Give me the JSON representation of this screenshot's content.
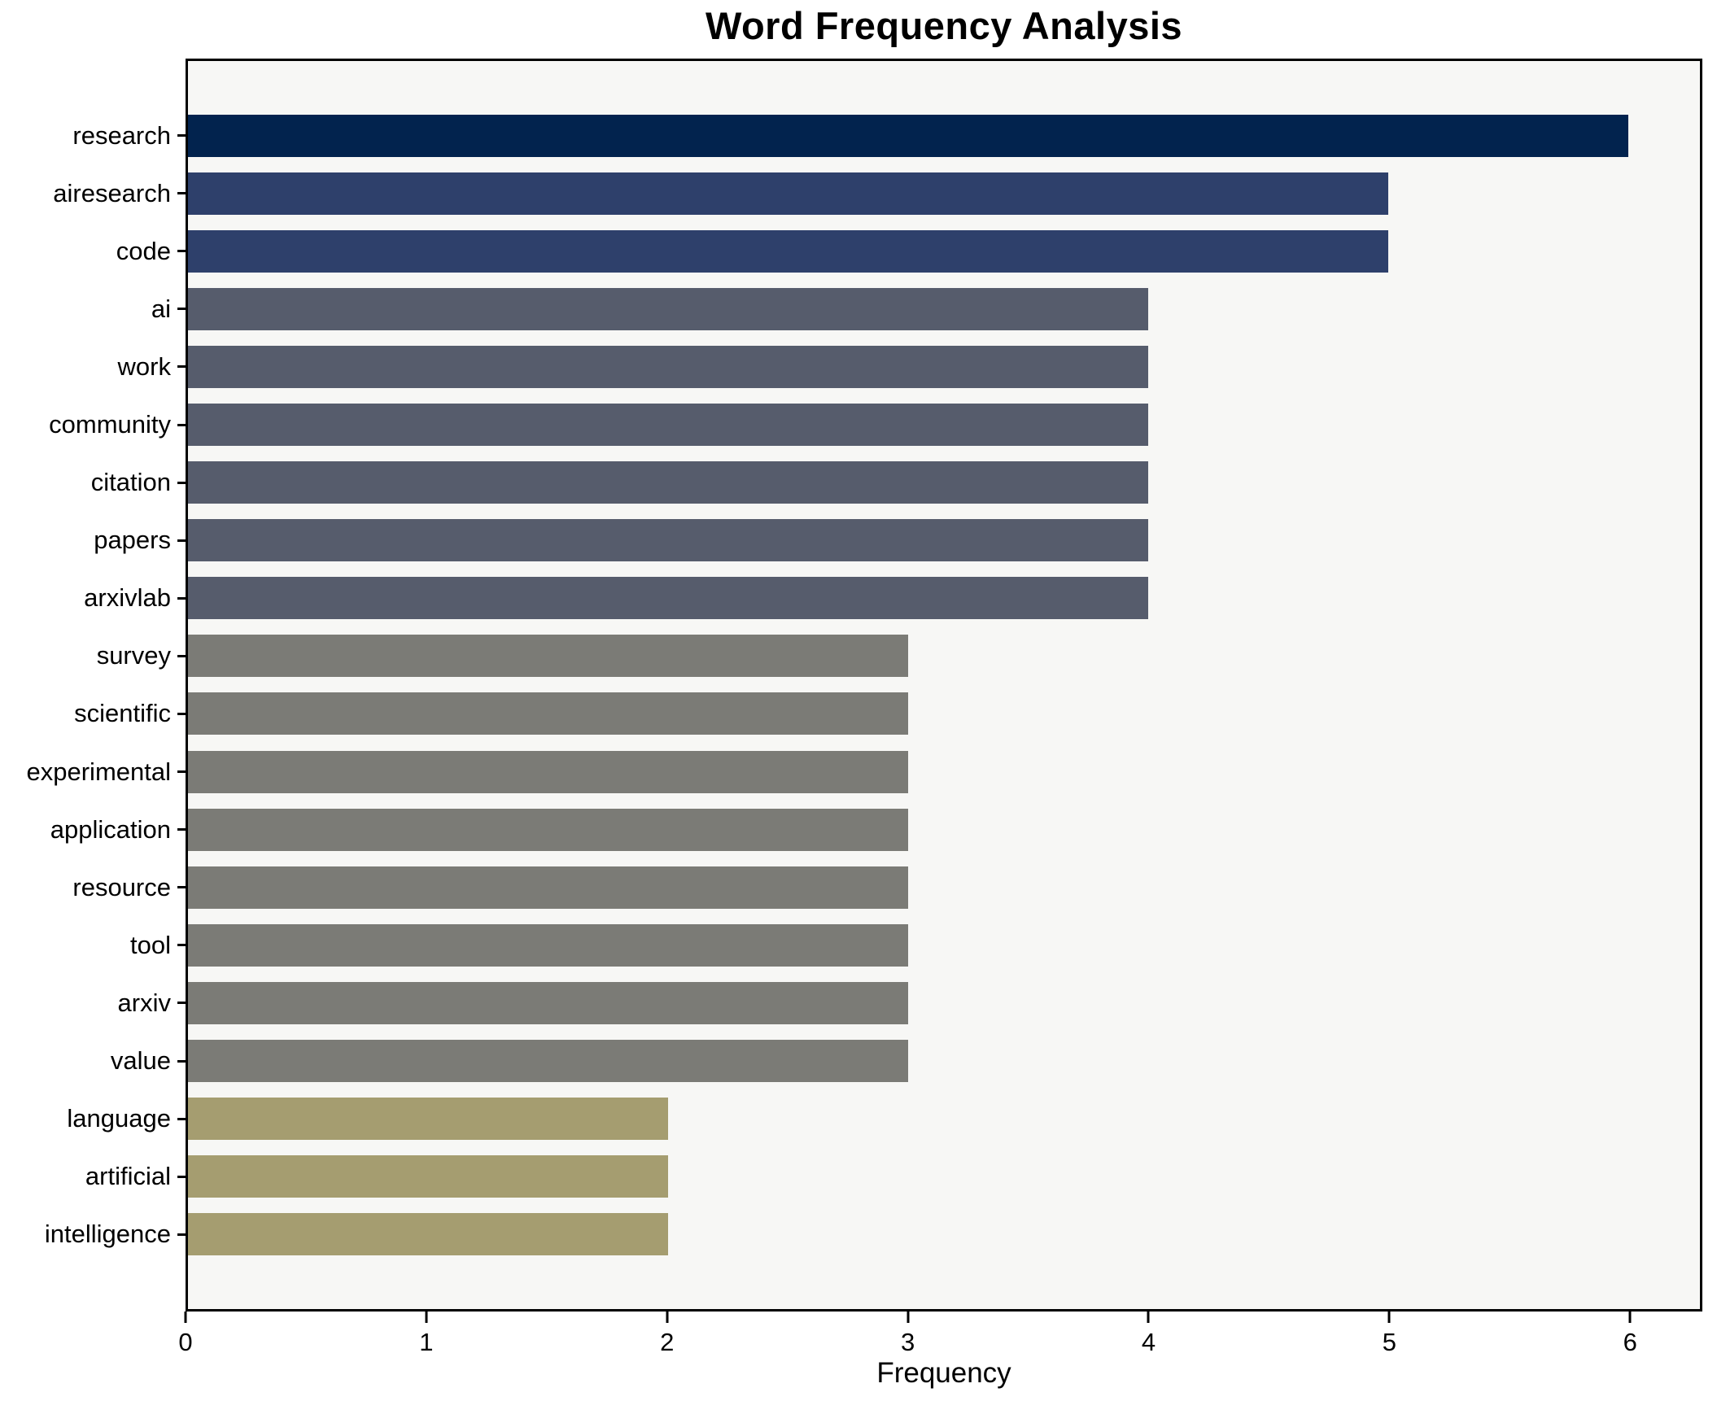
{
  "chart_data": {
    "type": "bar",
    "orientation": "horizontal",
    "title": "Word Frequency Analysis",
    "xlabel": "Frequency",
    "ylabel": "",
    "categories": [
      "research",
      "airesearch",
      "code",
      "ai",
      "work",
      "community",
      "citation",
      "papers",
      "arxivlab",
      "survey",
      "scientific",
      "experimental",
      "application",
      "resource",
      "tool",
      "arxiv",
      "value",
      "language",
      "artificial",
      "intelligence"
    ],
    "values": [
      6,
      5,
      5,
      4,
      4,
      4,
      4,
      4,
      4,
      3,
      3,
      3,
      3,
      3,
      3,
      3,
      3,
      2,
      2,
      2
    ],
    "bar_colors": [
      "#02234e",
      "#2e406b",
      "#2e406b",
      "#565c6c",
      "#565c6c",
      "#565c6c",
      "#565c6c",
      "#565c6c",
      "#565c6c",
      "#7b7b76",
      "#7b7b76",
      "#7b7b76",
      "#7b7b76",
      "#7b7b76",
      "#7b7b76",
      "#7b7b76",
      "#7b7b76",
      "#a59d70",
      "#a59d70",
      "#a59d70"
    ],
    "xticks": [
      0,
      1,
      2,
      3,
      4,
      5,
      6
    ],
    "xlim": [
      0,
      6.3
    ],
    "grid": false,
    "legend_position": "none",
    "plot_background": "#f7f7f5",
    "figure_background": "#ffffff",
    "axis_color": "#000000"
  }
}
